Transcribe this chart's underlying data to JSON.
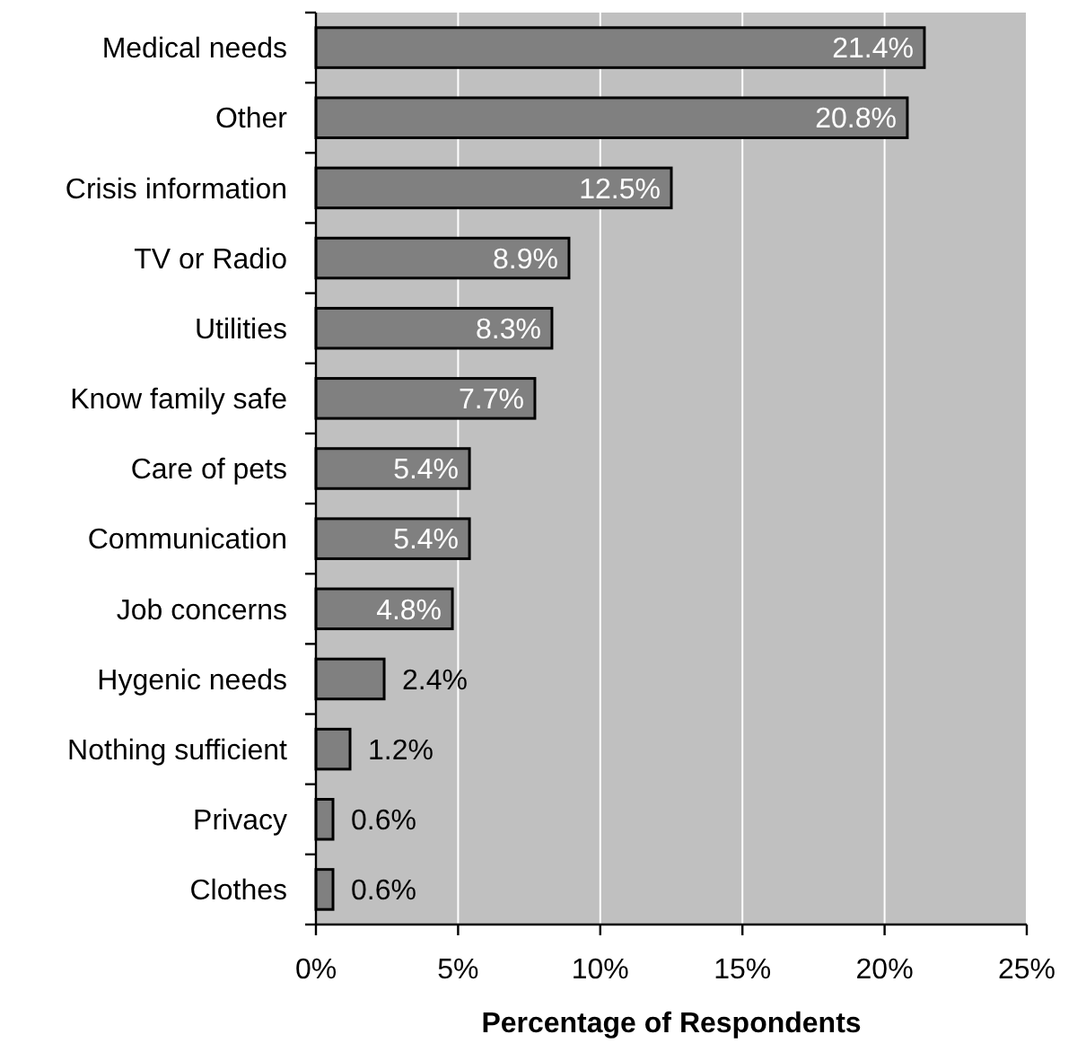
{
  "chart_data": {
    "type": "bar",
    "orientation": "horizontal",
    "categories": [
      "Medical needs",
      "Other",
      "Crisis information",
      "TV or Radio",
      "Utilities",
      "Know family safe",
      "Care of pets",
      "Communication",
      "Job concerns",
      "Hygenic needs",
      "Nothing sufficient",
      "Privacy",
      "Clothes"
    ],
    "values": [
      21.4,
      20.8,
      12.5,
      8.9,
      8.3,
      7.7,
      5.4,
      5.4,
      4.8,
      2.4,
      1.2,
      0.6,
      0.6
    ],
    "value_labels": [
      "21.4%",
      "20.8%",
      "12.5%",
      "8.9%",
      "8.3%",
      "7.7%",
      "5.4%",
      "5.4%",
      "4.8%",
      "2.4%",
      "1.2%",
      "0.6%",
      "0.6%"
    ],
    "color": "#808080",
    "xlim": [
      0,
      25
    ],
    "xticks": [
      {
        "value": 0,
        "label": "0%"
      },
      {
        "value": 5,
        "label": "5%"
      },
      {
        "value": 10,
        "label": "10%"
      },
      {
        "value": 15,
        "label": "15%"
      },
      {
        "value": 20,
        "label": "20%"
      },
      {
        "value": 25,
        "label": "25%"
      }
    ],
    "xlabel": "Percentage of Respondents",
    "grid": "x"
  }
}
